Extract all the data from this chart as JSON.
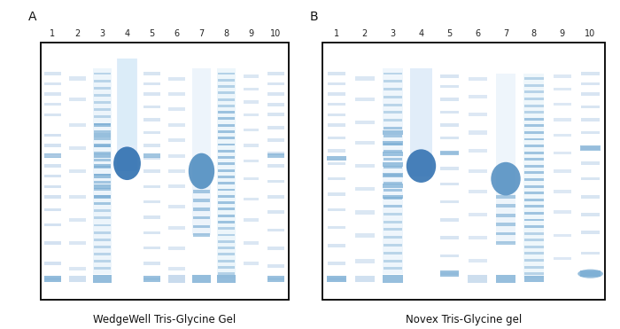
{
  "fig_width": 7.0,
  "fig_height": 3.71,
  "dpi": 100,
  "background_color": "#ffffff",
  "label_A": "A",
  "label_B": "B",
  "title_left": "WedgeWell Tris-Glycine Gel",
  "title_right": "Novex Tris-Glycine gel",
  "lane_labels": [
    "1",
    "2",
    "3",
    "4",
    "5",
    "6",
    "7",
    "8",
    "9",
    "10"
  ],
  "gel_bg": "#ffffff",
  "band_light": "#b8d0e8",
  "band_medium": "#7aadd4",
  "band_dark": "#4d8bbf",
  "band_spot": "#3070b0",
  "title_fontsize": 8.5,
  "label_fontsize": 10,
  "lane_fontsize": 7
}
